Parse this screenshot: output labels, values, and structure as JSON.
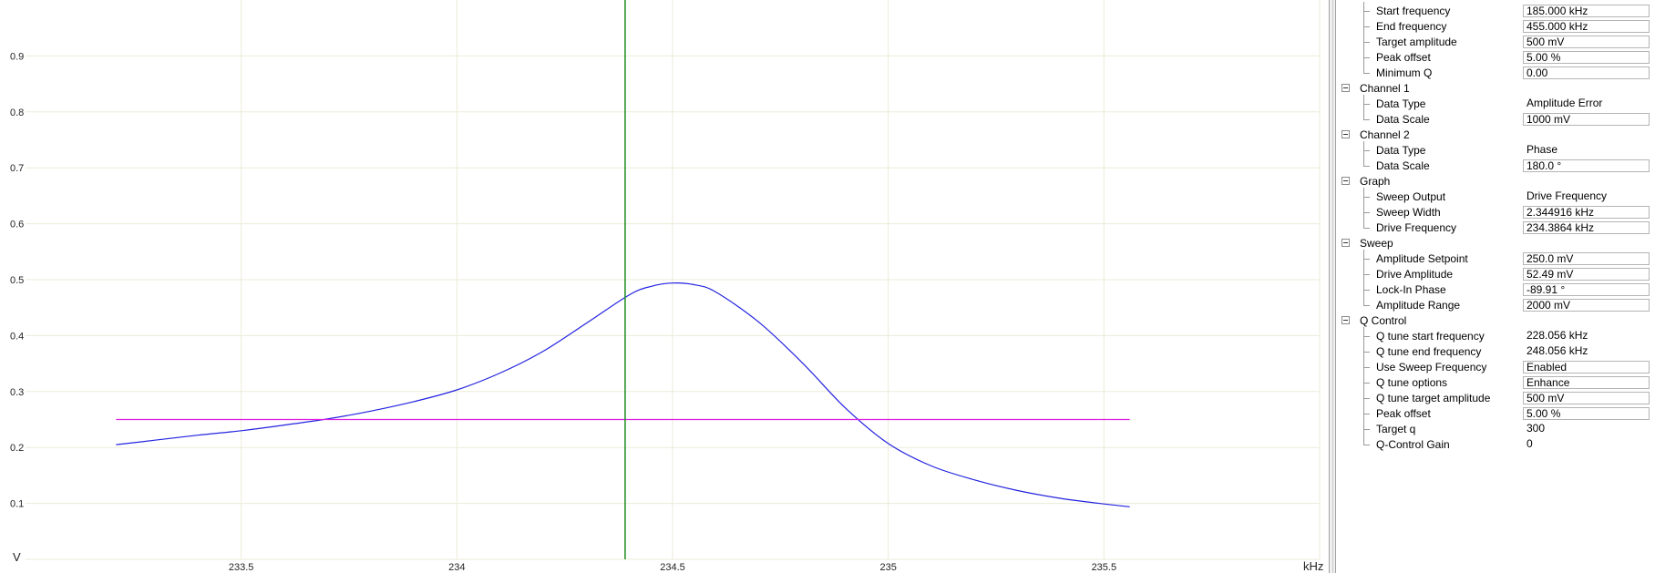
{
  "graph": {
    "y_unit": "V",
    "x_unit": "kHz",
    "y_ticks": [
      "0.1",
      "0.2",
      "0.3",
      "0.4",
      "0.5",
      "0.6",
      "0.7",
      "0.8",
      "0.9"
    ],
    "x_ticks": [
      "233.5",
      "234",
      "234.5",
      "235",
      "235.5"
    ],
    "colors": {
      "trace": "#2323e0",
      "setpoint_line": "#e020e0",
      "cursor_line": "#1f8a1f",
      "grid": "#ecebd8"
    }
  },
  "chart_data": {
    "type": "line",
    "xlabel": "kHz",
    "ylabel": "V",
    "xlim": [
      233.0,
      236.0
    ],
    "ylim": [
      0.0,
      1.0
    ],
    "grid": true,
    "series": [
      {
        "x": [
          233.21,
          233.3,
          233.4,
          233.5,
          233.6,
          233.7,
          233.8,
          233.9,
          234.0,
          234.1,
          234.2,
          234.3,
          234.4,
          234.45,
          234.5,
          234.55,
          234.6,
          234.7,
          234.8,
          234.9,
          235.0,
          235.1,
          235.2,
          235.3,
          235.4,
          235.5,
          235.56
        ],
        "y": [
          0.205,
          0.213,
          0.222,
          0.23,
          0.24,
          0.251,
          0.265,
          0.282,
          0.303,
          0.333,
          0.372,
          0.422,
          0.473,
          0.488,
          0.494,
          0.491,
          0.478,
          0.424,
          0.352,
          0.271,
          0.207,
          0.167,
          0.142,
          0.123,
          0.109,
          0.099,
          0.094
        ]
      },
      {
        "x": [
          233.21,
          235.56
        ],
        "y": [
          0.25,
          0.25
        ]
      }
    ],
    "annotations": [
      {
        "type": "vertical-line",
        "x": 234.39
      }
    ]
  },
  "properties": {
    "top_items": [
      {
        "label": "Start frequency",
        "value": "185.000 kHz",
        "boxed": true
      },
      {
        "label": "End frequency",
        "value": "455.000 kHz",
        "boxed": true
      },
      {
        "label": "Target amplitude",
        "value": "500 mV",
        "boxed": true
      },
      {
        "label": "Peak offset",
        "value": "5.00 %",
        "boxed": true
      },
      {
        "label": "Minimum Q",
        "value": "0.00",
        "boxed": true
      }
    ],
    "categories": [
      {
        "name": "Channel 1",
        "items": [
          {
            "label": "Data Type",
            "value": "Amplitude Error",
            "boxed": false
          },
          {
            "label": "Data Scale",
            "value": "1000 mV",
            "boxed": true
          }
        ]
      },
      {
        "name": "Channel 2",
        "items": [
          {
            "label": "Data Type",
            "value": "Phase",
            "boxed": false
          },
          {
            "label": "Data Scale",
            "value": "180.0 °",
            "boxed": true
          }
        ]
      },
      {
        "name": "Graph",
        "items": [
          {
            "label": "Sweep Output",
            "value": "Drive Frequency",
            "boxed": false
          },
          {
            "label": "Sweep Width",
            "value": "2.344916 kHz",
            "boxed": true
          },
          {
            "label": "Drive Frequency",
            "value": "234.3864 kHz",
            "boxed": true
          }
        ]
      },
      {
        "name": "Sweep",
        "items": [
          {
            "label": "Amplitude Setpoint",
            "value": "250.0 mV",
            "boxed": true
          },
          {
            "label": "Drive Amplitude",
            "value": "52.49 mV",
            "boxed": true
          },
          {
            "label": "Lock-In Phase",
            "value": "-89.91 °",
            "boxed": true
          },
          {
            "label": "Amplitude Range",
            "value": "2000 mV",
            "boxed": true
          }
        ]
      },
      {
        "name": "Q Control",
        "items": [
          {
            "label": "Q tune start frequency",
            "value": "228.056 kHz",
            "boxed": false
          },
          {
            "label": "Q tune end frequency",
            "value": "248.056 kHz",
            "boxed": false
          },
          {
            "label": "Use Sweep Frequency",
            "value": "Enabled",
            "boxed": true
          },
          {
            "label": "Q tune options",
            "value": "Enhance",
            "boxed": true
          },
          {
            "label": "Q tune target amplitude",
            "value": "500 mV",
            "boxed": true
          },
          {
            "label": "Peak offset",
            "value": "5.00 %",
            "boxed": true
          },
          {
            "label": "Target q",
            "value": "300",
            "boxed": false
          },
          {
            "label": "Q-Control Gain",
            "value": "0",
            "boxed": false
          }
        ]
      }
    ]
  }
}
